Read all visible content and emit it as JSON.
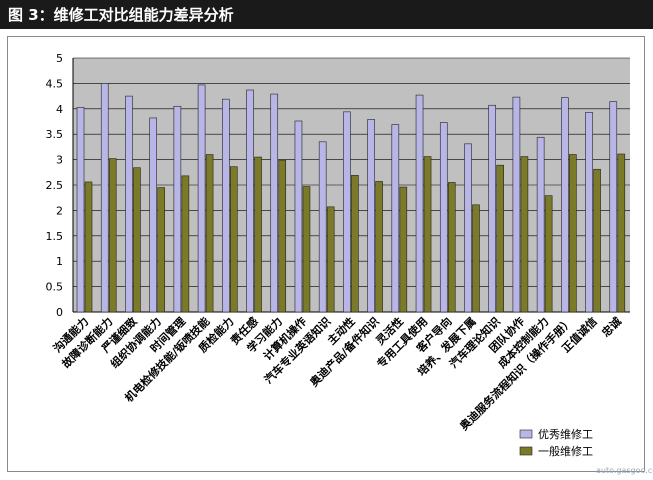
{
  "header": {
    "title": "图 3：维修工对比组能力差异分析"
  },
  "watermark": "auto.gasgoo.com",
  "colors": {
    "header_bg": "#1a1a1a",
    "plot_bg": "#c0c0c0",
    "series_excellent": "#b8b6e6",
    "series_general": "#7a7a28"
  },
  "chart_data": {
    "type": "bar",
    "title": "",
    "xlabel": "",
    "ylabel": "",
    "ylim": [
      0,
      5
    ],
    "yticks": [
      "0",
      "0.5",
      "1",
      "1.5",
      "2",
      "2.5",
      "3",
      "3.5",
      "4",
      "4.5",
      "5"
    ],
    "grid": true,
    "legend_position": "bottom-right",
    "categories": [
      "沟通能力",
      "故障诊断能力",
      "严谨细致",
      "组织协调能力",
      "时间管理",
      "机电检修技能/钣喷技能",
      "质检能力",
      "责任感",
      "学习能力",
      "计算机操作",
      "汽车专业英语知识",
      "主动性",
      "奥迪产品/备件知识",
      "灵活性",
      "专用工具使用",
      "客户导向",
      "培养、发展下属",
      "汽车理论知识",
      "团队协作",
      "成本控制能力",
      "奥迪服务流程知识（操作手册）",
      "正值诚信",
      "忠诚"
    ],
    "series": [
      {
        "name": "优秀维修工",
        "values": [
          4.03,
          4.5,
          4.25,
          3.82,
          4.05,
          4.47,
          4.19,
          4.37,
          4.29,
          3.76,
          3.35,
          3.94,
          3.79,
          3.69,
          4.27,
          3.73,
          3.31,
          4.07,
          4.23,
          3.44,
          4.22,
          3.93,
          4.14
        ]
      },
      {
        "name": "一般维修工",
        "values": [
          2.56,
          3.02,
          2.84,
          2.45,
          2.68,
          3.1,
          2.86,
          3.05,
          2.99,
          2.47,
          2.07,
          2.69,
          2.57,
          2.46,
          3.06,
          2.55,
          2.11,
          2.89,
          3.06,
          2.29,
          3.1,
          2.81,
          3.11
        ]
      }
    ]
  }
}
